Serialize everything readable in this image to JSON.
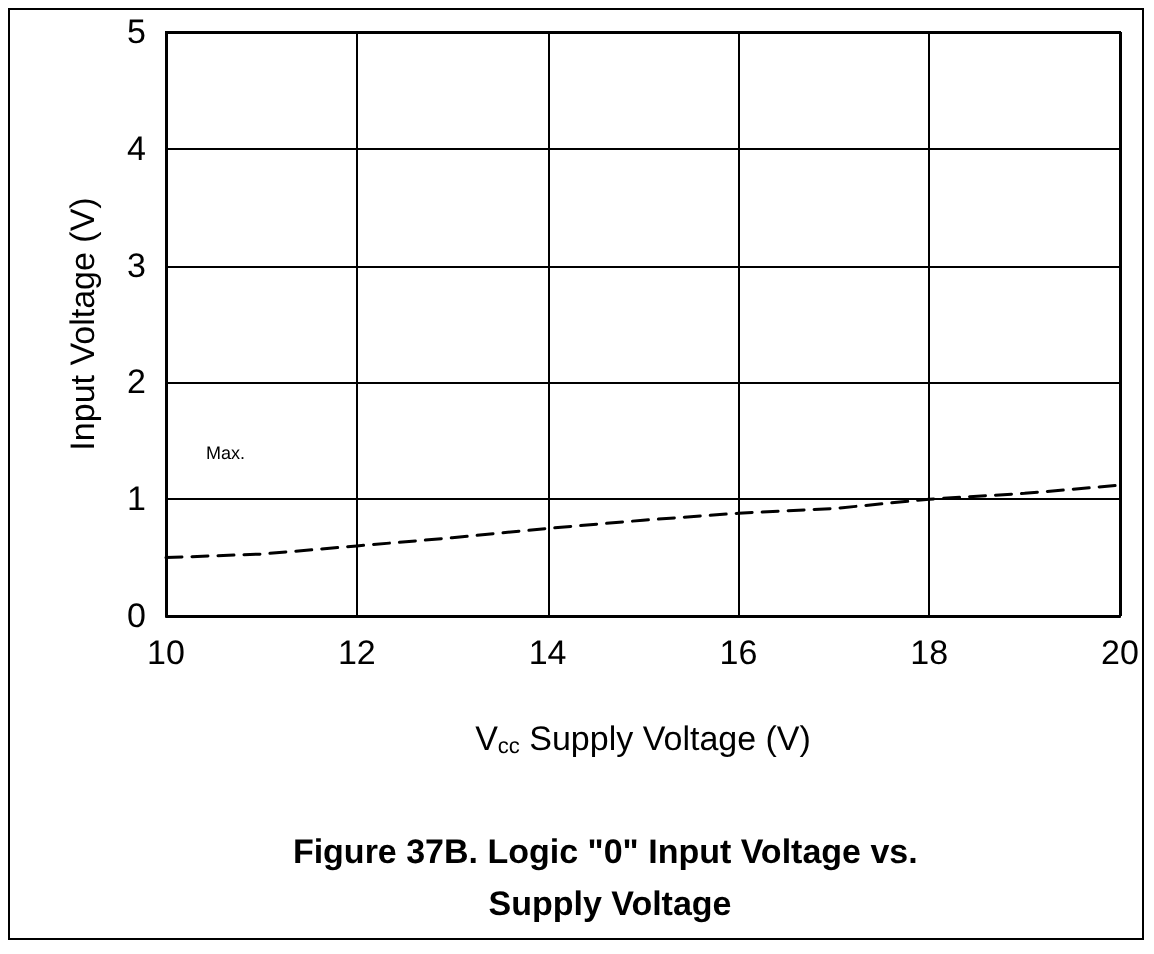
{
  "chart_data": {
    "type": "line",
    "title": "Figure 37B. Logic \"0\" Input Voltage vs. Supply Voltage",
    "xlabel": "V$_{cc}$ Supply Voltage (V)",
    "ylabel": "Input Voltage (V)",
    "x": [
      10,
      11,
      12,
      13,
      14,
      15,
      16,
      17,
      18,
      19,
      20
    ],
    "series": [
      {
        "color": "#000000",
        "values": [
          0.5,
          0.53,
          0.6,
          0.67,
          0.75,
          0.82,
          0.88,
          0.92,
          1.0,
          1.05,
          1.12
        ]
      }
    ],
    "xlim": [
      10,
      20
    ],
    "xticks": [
      10,
      12,
      14,
      16,
      18,
      20
    ],
    "ylim": [
      0,
      5
    ],
    "yticks": [
      0,
      1,
      2,
      3,
      4,
      5
    ],
    "annotations": [
      "Max."
    ],
    "grid": true,
    "marker": "none",
    "line_style": "dashed"
  }
}
